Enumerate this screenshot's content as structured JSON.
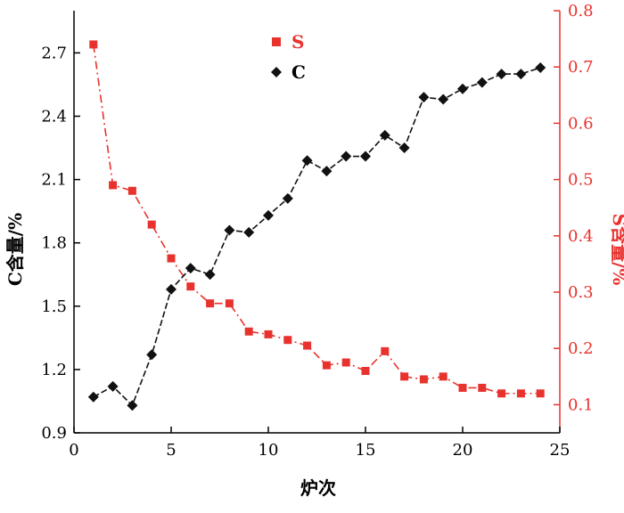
{
  "chart_data": {
    "type": "line",
    "xlabel": "炉次",
    "ylabel_left": "C含量/%",
    "ylabel_right": "S含量/%",
    "xlim": [
      0,
      25
    ],
    "ylim_left": [
      0.9,
      2.9
    ],
    "ylim_right": [
      0.05,
      0.8
    ],
    "x_ticks": [
      "0",
      "5",
      "10",
      "15",
      "20",
      "25"
    ],
    "y_left_ticks": [
      "0.9",
      "1.2",
      "1.5",
      "1.8",
      "2.1",
      "2.4",
      "2.7"
    ],
    "y_right_ticks": [
      "0.1",
      "0.2",
      "0.3",
      "0.4",
      "0.5",
      "0.6",
      "0.7",
      "0.8"
    ],
    "grid": false,
    "legend_position": "top-center",
    "series": [
      {
        "name": "S",
        "axis": "right",
        "color": "#e8322e",
        "marker": "square",
        "line_style": "dash-dot",
        "x": [
          1,
          2,
          3,
          4,
          5,
          6,
          7,
          8,
          9,
          10,
          11,
          12,
          13,
          14,
          15,
          16,
          17,
          18,
          19,
          20,
          21,
          22,
          23,
          24
        ],
        "values": [
          0.74,
          0.49,
          0.48,
          0.42,
          0.36,
          0.31,
          0.28,
          0.28,
          0.23,
          0.225,
          0.215,
          0.205,
          0.17,
          0.175,
          0.16,
          0.195,
          0.15,
          0.145,
          0.15,
          0.13,
          0.13,
          0.12,
          0.12,
          0.12
        ]
      },
      {
        "name": "C",
        "axis": "left",
        "color": "#111111",
        "marker": "diamond",
        "line_style": "dash",
        "x": [
          1,
          2,
          3,
          4,
          5,
          6,
          7,
          8,
          9,
          10,
          11,
          12,
          13,
          14,
          15,
          16,
          17,
          18,
          19,
          20,
          21,
          22,
          23,
          24
        ],
        "values": [
          1.07,
          1.12,
          1.03,
          1.27,
          1.58,
          1.68,
          1.65,
          1.86,
          1.85,
          1.93,
          2.01,
          2.19,
          2.14,
          2.21,
          2.21,
          2.31,
          2.25,
          2.49,
          2.48,
          2.53,
          2.56,
          2.6,
          2.6,
          2.63
        ]
      }
    ]
  }
}
